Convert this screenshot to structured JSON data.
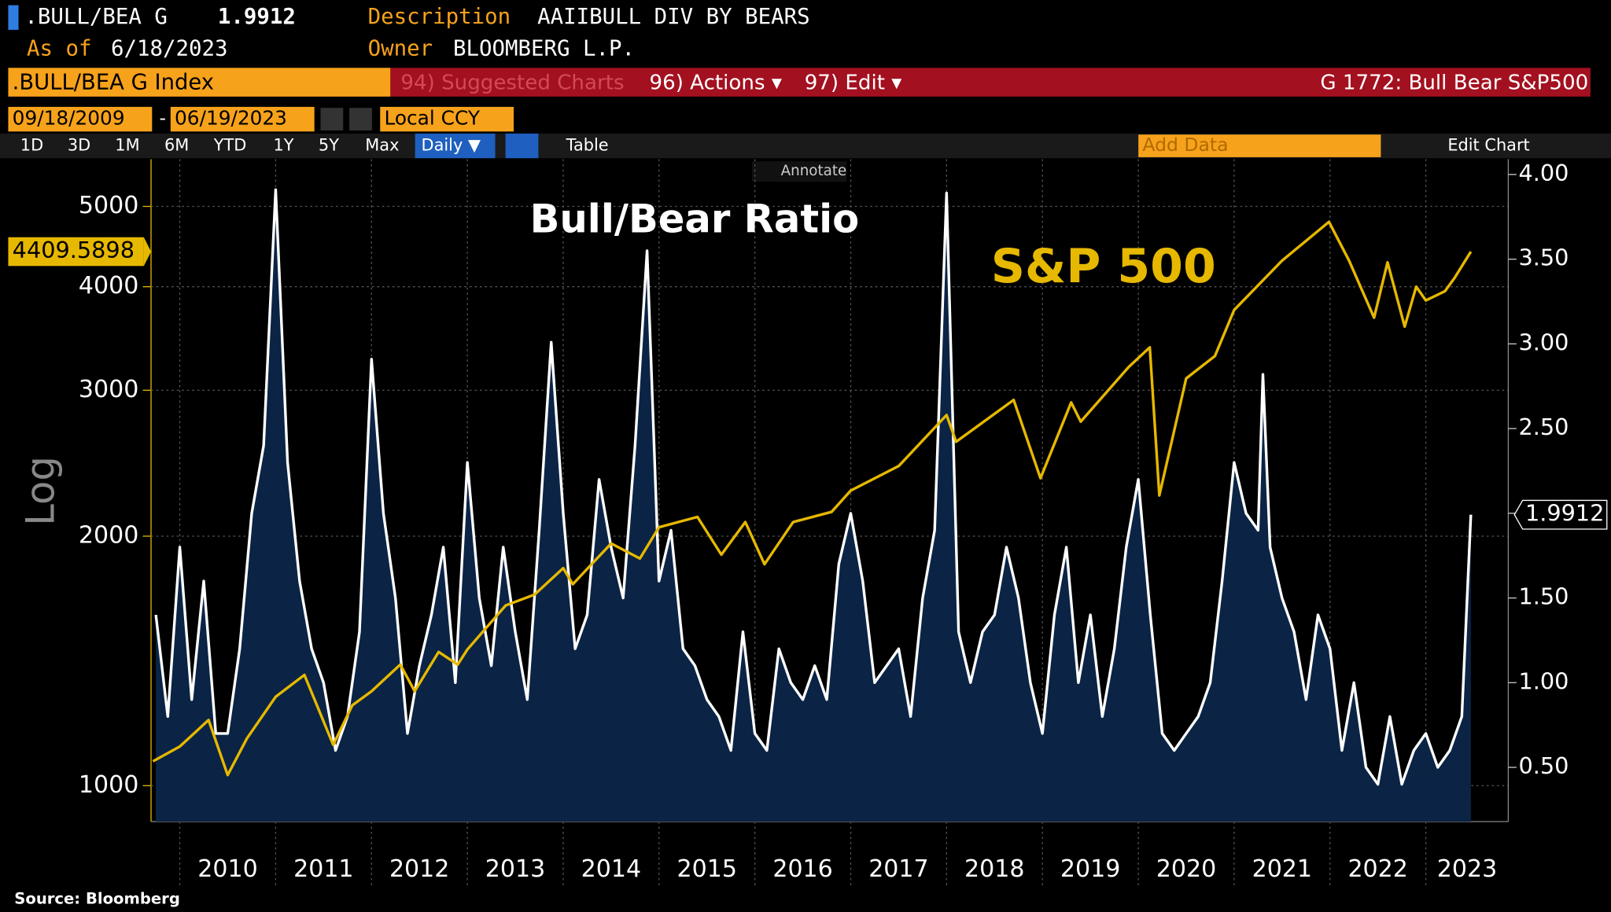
{
  "header": {
    "ticker": ".BULL/BEA G",
    "description_label": "Description",
    "description": "AAIIBULL DIV BY BEARS",
    "asof_label": "As of",
    "asof": "6/18/2023",
    "owner_label": "Owner",
    "owner": "BLOOMBERG L.P.",
    "security": ".BULL/BEA G Index",
    "suggested": "94) Suggested Charts",
    "actions": "96) Actions ▾",
    "edit": "97) Edit ▾",
    "chart_id": "G 1772: Bull Bear S&P500",
    "start_date": "09/18/2009",
    "end_date": "06/19/2023",
    "currency": "Local CCY",
    "periods": [
      "1D",
      "3D",
      "1M",
      "6M",
      "YTD",
      "1Y",
      "5Y",
      "Max"
    ],
    "frequency": "Daily ▼",
    "table": "Table",
    "add_data": "Add Data",
    "edit_chart": "Edit Chart",
    "annotate": "Annotate",
    "source": "Source: Bloomberg"
  },
  "chart_data": {
    "type": "line",
    "y_label": "Log",
    "ylog": true,
    "annotations": [
      "Bull/Bear Ratio",
      "S&P 500"
    ],
    "xlim": [
      2009.7,
      2023.86
    ],
    "xticks": [
      2010,
      2011,
      2012,
      2013,
      2014,
      2015,
      2016,
      2017,
      2018,
      2019,
      2020,
      2021,
      2022,
      2023
    ],
    "ylim": [
      905,
      5700
    ],
    "yticks": [
      1000,
      2000,
      3000,
      4000,
      5000
    ],
    "y2lim": [
      0.18,
      4.09
    ],
    "y2ticks": [
      {
        "value": 0.5,
        "label": "0.50"
      },
      {
        "value": 1,
        "label": "1.00"
      },
      {
        "value": 1.5,
        "label": "1.50"
      },
      {
        "value": 2,
        "label": "2.00"
      },
      {
        "value": 2.5,
        "label": "2.50"
      },
      {
        "value": 3,
        "label": "3.00"
      },
      {
        "value": 3.5,
        "label": "3.50"
      },
      {
        "value": 4,
        "label": "4.00"
      }
    ],
    "series": [
      {
        "name": "S&P 500",
        "color": "#e6b800",
        "x": [
          2009.72,
          2010.0,
          2010.3,
          2010.5,
          2010.7,
          2011.0,
          2011.3,
          2011.6,
          2011.8,
          2012.0,
          2012.3,
          2012.45,
          2012.7,
          2012.9,
          2013.0,
          2013.4,
          2013.7,
          2014.0,
          2014.1,
          2014.5,
          2014.8,
          2015.0,
          2015.4,
          2015.65,
          2015.9,
          2016.1,
          2016.4,
          2016.8,
          2017.0,
          2017.5,
          2018.0,
          2018.1,
          2018.7,
          2018.98,
          2019.3,
          2019.4,
          2019.9,
          2020.12,
          2020.22,
          2020.5,
          2020.8,
          2021.0,
          2021.5,
          2021.99,
          2022.2,
          2022.46,
          2022.6,
          2022.78,
          2022.9,
          2023.0,
          2023.2,
          2023.3,
          2023.47
        ],
        "values": [
          1070,
          1115,
          1200,
          1030,
          1140,
          1280,
          1360,
          1120,
          1250,
          1300,
          1400,
          1300,
          1450,
          1400,
          1460,
          1650,
          1700,
          1830,
          1750,
          1960,
          1880,
          2050,
          2110,
          1900,
          2080,
          1850,
          2080,
          2140,
          2270,
          2430,
          2800,
          2600,
          2920,
          2350,
          2900,
          2750,
          3200,
          3380,
          2240,
          3100,
          3300,
          3750,
          4300,
          4790,
          4300,
          3670,
          4280,
          3580,
          4000,
          3850,
          3950,
          4100,
          4409.5898
        ]
      },
      {
        "name": "Bull/Bear Ratio",
        "color": "#ffffff",
        "axis": "y2",
        "x": [
          2009.75,
          2009.875,
          2010.0,
          2010.125,
          2010.25,
          2010.375,
          2010.5,
          2010.625,
          2010.75,
          2010.875,
          2011.0,
          2011.125,
          2011.25,
          2011.375,
          2011.5,
          2011.625,
          2011.75,
          2011.875,
          2012.0,
          2012.125,
          2012.25,
          2012.375,
          2012.5,
          2012.625,
          2012.75,
          2012.875,
          2013.0,
          2013.125,
          2013.25,
          2013.375,
          2013.5,
          2013.625,
          2013.75,
          2013.875,
          2014.0,
          2014.125,
          2014.25,
          2014.375,
          2014.5,
          2014.625,
          2014.75,
          2014.875,
          2015.0,
          2015.125,
          2015.25,
          2015.375,
          2015.5,
          2015.625,
          2015.75,
          2015.875,
          2016.0,
          2016.125,
          2016.25,
          2016.375,
          2016.5,
          2016.625,
          2016.75,
          2016.875,
          2017.0,
          2017.125,
          2017.25,
          2017.375,
          2017.5,
          2017.625,
          2017.75,
          2017.875,
          2018.0,
          2018.125,
          2018.25,
          2018.375,
          2018.5,
          2018.625,
          2018.75,
          2018.875,
          2019.0,
          2019.125,
          2019.25,
          2019.375,
          2019.5,
          2019.625,
          2019.75,
          2019.875,
          2020.0,
          2020.125,
          2020.25,
          2020.375,
          2020.5,
          2020.625,
          2020.75,
          2020.875,
          2021.0,
          2021.125,
          2021.25,
          2021.3,
          2021.375,
          2021.5,
          2021.625,
          2021.75,
          2021.875,
          2022.0,
          2022.125,
          2022.25,
          2022.375,
          2022.5,
          2022.625,
          2022.75,
          2022.875,
          2023.0,
          2023.125,
          2023.25,
          2023.375,
          2023.47
        ],
        "values": [
          1.4,
          0.8,
          1.8,
          0.9,
          1.6,
          0.7,
          0.7,
          1.2,
          2.0,
          2.4,
          3.91,
          2.3,
          1.6,
          1.2,
          1.0,
          0.6,
          0.8,
          1.3,
          2.91,
          2.0,
          1.5,
          0.7,
          1.1,
          1.4,
          1.8,
          1.0,
          2.3,
          1.5,
          1.1,
          1.8,
          1.3,
          0.9,
          1.9,
          3.01,
          2.0,
          1.2,
          1.4,
          2.2,
          1.8,
          1.5,
          2.4,
          3.55,
          1.6,
          1.9,
          1.2,
          1.1,
          0.9,
          0.8,
          0.6,
          1.3,
          0.7,
          0.6,
          1.2,
          1.0,
          0.9,
          1.1,
          0.9,
          1.7,
          2.0,
          1.6,
          1.0,
          1.1,
          1.2,
          0.8,
          1.5,
          1.9,
          3.89,
          1.3,
          1.0,
          1.3,
          1.4,
          1.8,
          1.5,
          1.0,
          0.7,
          1.4,
          1.8,
          1.0,
          1.4,
          0.8,
          1.2,
          1.8,
          2.2,
          1.4,
          0.7,
          0.6,
          0.7,
          0.8,
          1.0,
          1.6,
          2.3,
          2.0,
          1.9,
          2.82,
          1.8,
          1.5,
          1.3,
          0.9,
          1.4,
          1.2,
          0.6,
          1.0,
          0.5,
          0.4,
          0.8,
          0.4,
          0.6,
          0.7,
          0.5,
          0.6,
          0.8,
          1.9912
        ]
      }
    ]
  }
}
